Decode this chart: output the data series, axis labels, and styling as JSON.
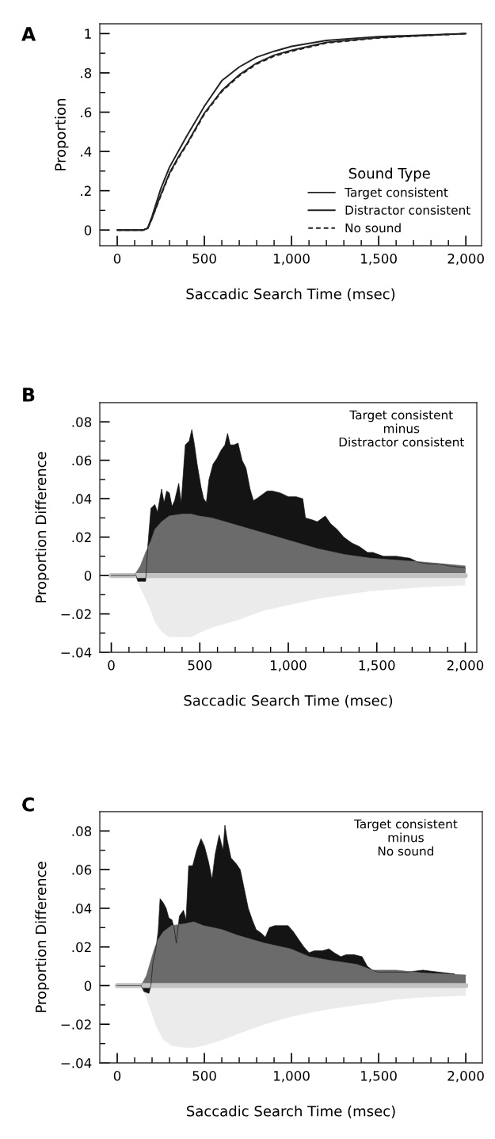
{
  "chart_data": [
    {
      "type": "line",
      "title": "A",
      "xlabel": "Saccadic Search Time (msec)",
      "ylabel": "Proportion",
      "legend_title": "Sound Type",
      "legend": "bottom right",
      "x": [
        0,
        150,
        175,
        200,
        250,
        300,
        350,
        400,
        500,
        600,
        700,
        800,
        900,
        1000,
        1200,
        1500,
        2000
      ],
      "series": [
        {
          "name": "Target consistent",
          "color": "#222222",
          "line_style": "solid",
          "values": [
            0,
            0,
            0.01,
            0.07,
            0.21,
            0.32,
            0.4,
            0.48,
            0.63,
            0.76,
            0.83,
            0.88,
            0.91,
            0.935,
            0.965,
            0.985,
            1
          ]
        },
        {
          "name": "Distractor consistent",
          "color": "#222222",
          "line_style": "solid",
          "values": [
            0,
            0,
            0.008,
            0.06,
            0.18,
            0.29,
            0.37,
            0.44,
            0.595,
            0.71,
            0.79,
            0.85,
            0.89,
            0.915,
            0.955,
            0.98,
            1
          ]
        },
        {
          "name": "No sound",
          "color": "#222222",
          "line_style": "dashed",
          "values": [
            0,
            0,
            0.008,
            0.06,
            0.175,
            0.285,
            0.365,
            0.435,
            0.59,
            0.705,
            0.785,
            0.845,
            0.885,
            0.91,
            0.952,
            0.978,
            1
          ]
        }
      ],
      "xlim": [
        -100,
        2090
      ],
      "ylim": [
        -0.08,
        1.05
      ],
      "xticks": [
        0,
        {
          "value": 100,
          "label": null
        },
        {
          "value": 200,
          "label": null
        },
        {
          "value": 300,
          "label": null
        },
        {
          "value": 400,
          "label": null
        },
        500,
        {
          "value": 600,
          "label": null
        },
        {
          "value": 700,
          "label": null
        },
        {
          "value": 800,
          "label": null
        },
        {
          "value": 900,
          "label": null
        },
        {
          "value": 1000,
          "label": "1,000"
        },
        {
          "value": 1100,
          "label": null
        },
        {
          "value": 1200,
          "label": null
        },
        {
          "value": 1300,
          "label": null
        },
        {
          "value": 1400,
          "label": null
        },
        {
          "value": 1500,
          "label": "1,500"
        },
        {
          "value": 1600,
          "label": null
        },
        {
          "value": 1700,
          "label": null
        },
        {
          "value": 1800,
          "label": null
        },
        {
          "value": 1900,
          "label": null
        },
        {
          "value": 2000,
          "label": "2,000"
        }
      ],
      "yticks": [
        0,
        {
          "value": 0.1,
          "label": null
        },
        {
          "value": 0.2,
          "label": ".2"
        },
        {
          "value": 0.3,
          "label": null
        },
        {
          "value": 0.4,
          "label": ".4"
        },
        {
          "value": 0.5,
          "label": null
        },
        {
          "value": 0.6,
          "label": ".6"
        },
        {
          "value": 0.7,
          "label": null
        },
        {
          "value": 0.8,
          "label": ".8"
        },
        {
          "value": 0.9,
          "label": null
        },
        1
      ]
    },
    {
      "type": "area",
      "title": "B",
      "xlabel": "Saccadic Search Time (msec)",
      "ylabel": "Proportion Difference",
      "annotations": [
        "Target consistent\nminus\nDistractor consistent"
      ],
      "series": [
        {
          "type": "area",
          "color": "#eaebea",
          "x": [
            0,
            130,
            164,
            194,
            224,
            246,
            284,
            328,
            403,
            448,
            493,
            567,
            642,
            716,
            866,
            1015,
            1164,
            1313,
            1463,
            1612,
            1761,
            2000
          ],
          "values": [
            0,
            0,
            -0.006,
            -0.012,
            -0.018,
            -0.024,
            -0.029,
            -0.032,
            -0.032,
            -0.032,
            -0.03,
            -0.027,
            -0.025,
            -0.023,
            -0.018,
            -0.015,
            -0.012,
            -0.01,
            -0.008,
            -0.007,
            -0.006,
            -0.005
          ]
        },
        {
          "type": "area",
          "color": "#141414",
          "x": [
            0,
            140,
            150,
            175,
            194,
            206,
            224,
            246,
            261,
            284,
            298,
            313,
            328,
            343,
            358,
            381,
            395,
            418,
            440,
            455,
            470,
            485,
            507,
            522,
            537,
            552,
            575,
            597,
            619,
            642,
            657,
            672,
            694,
            716,
            739,
            761,
            784,
            803,
            821,
            851,
            881,
            910,
            955,
            1000,
            1045,
            1082,
            1097,
            1134,
            1164,
            1209,
            1239,
            1276,
            1313,
            1358,
            1403,
            1448,
            1478,
            1537,
            1612,
            1687,
            1731,
            1791,
            1851,
            1910,
            2000
          ],
          "values": [
            0,
            0,
            -0.003,
            -0.003,
            -0.003,
            0.015,
            0.035,
            0.037,
            0.033,
            0.045,
            0.038,
            0.044,
            0.043,
            0.036,
            0.039,
            0.048,
            0.038,
            0.068,
            0.07,
            0.076,
            0.068,
            0.058,
            0.046,
            0.04,
            0.038,
            0.05,
            0.058,
            0.061,
            0.065,
            0.068,
            0.074,
            0.068,
            0.068,
            0.069,
            0.06,
            0.056,
            0.045,
            0.039,
            0.04,
            0.042,
            0.044,
            0.044,
            0.043,
            0.041,
            0.041,
            0.04,
            0.03,
            0.029,
            0.028,
            0.031,
            0.027,
            0.024,
            0.02,
            0.017,
            0.015,
            0.012,
            0.012,
            0.01,
            0.01,
            0.009,
            0.007,
            0.006,
            0.006,
            0.005,
            0.004
          ]
        },
        {
          "type": "area",
          "color": "#6b6b6b",
          "x": [
            0,
            130,
            164,
            194,
            224,
            246,
            284,
            328,
            403,
            448,
            493,
            567,
            642,
            716,
            866,
            1015,
            1164,
            1313,
            1463,
            1612,
            1761,
            2000
          ],
          "values": [
            0,
            0,
            0.005,
            0.012,
            0.018,
            0.024,
            0.028,
            0.031,
            0.032,
            0.032,
            0.031,
            0.03,
            0.028,
            0.026,
            0.022,
            0.018,
            0.014,
            0.011,
            0.009,
            0.008,
            0.007,
            0.005
          ]
        },
        {
          "type": "line",
          "color": "#c2c2c2",
          "x": [
            0,
            2000
          ],
          "values": [
            0,
            0
          ]
        }
      ],
      "xlim": [
        -65,
        2065
      ],
      "ylim": [
        -0.04,
        0.09
      ],
      "xticks": [
        0,
        {
          "value": 100,
          "label": null
        },
        {
          "value": 200,
          "label": null
        },
        {
          "value": 300,
          "label": null
        },
        {
          "value": 400,
          "label": null
        },
        500,
        {
          "value": 600,
          "label": null
        },
        {
          "value": 700,
          "label": null
        },
        {
          "value": 800,
          "label": null
        },
        {
          "value": 900,
          "label": null
        },
        {
          "value": 1000,
          "label": "1,000"
        },
        {
          "value": 1100,
          "label": null
        },
        {
          "value": 1200,
          "label": null
        },
        {
          "value": 1300,
          "label": null
        },
        {
          "value": 1400,
          "label": null
        },
        {
          "value": 1500,
          "label": "1,500"
        },
        {
          "value": 1600,
          "label": null
        },
        {
          "value": 1700,
          "label": null
        },
        {
          "value": 1800,
          "label": null
        },
        {
          "value": 1900,
          "label": null
        },
        {
          "value": 2000,
          "label": "2,000"
        }
      ],
      "yticks": [
        {
          "value": -0.04,
          "label": "−.04"
        },
        {
          "value": -0.03,
          "label": null
        },
        {
          "value": -0.02,
          "label": "−.02"
        },
        {
          "value": -0.01,
          "label": null
        },
        0,
        {
          "value": 0.01,
          "label": null
        },
        {
          "value": 0.02,
          "label": ".02"
        },
        {
          "value": 0.03,
          "label": null
        },
        {
          "value": 0.04,
          "label": ".04"
        },
        {
          "value": 0.05,
          "label": null
        },
        {
          "value": 0.06,
          "label": ".06"
        },
        {
          "value": 0.07,
          "label": null
        },
        {
          "value": 0.08,
          "label": ".08"
        }
      ]
    },
    {
      "type": "area",
      "title": "C",
      "xlabel": "Saccadic Search Time (msec)",
      "ylabel": "Proportion Difference",
      "annotations": [
        "Target consistent\nminus\nNo sound"
      ],
      "series": [
        {
          "type": "area",
          "color": "#eaebea",
          "x": [
            0,
            137,
            167,
            190,
            213,
            235,
            266,
            311,
            387,
            440,
            494,
            600,
            691,
            843,
            995,
            1101,
            1222,
            1374,
            1465,
            1602,
            1754,
            2000
          ],
          "values": [
            0,
            0,
            -0.006,
            -0.012,
            -0.018,
            -0.023,
            -0.028,
            -0.031,
            -0.032,
            -0.032,
            -0.031,
            -0.028,
            -0.025,
            -0.02,
            -0.016,
            -0.014,
            -0.012,
            -0.01,
            -0.009,
            -0.007,
            -0.006,
            -0.005
          ]
        },
        {
          "type": "area",
          "color": "#141414",
          "x": [
            0,
            137,
            152,
            182,
            193,
            205,
            220,
            235,
            246,
            263,
            281,
            296,
            314,
            326,
            339,
            357,
            380,
            395,
            410,
            433,
            456,
            481,
            501,
            524,
            544,
            562,
            585,
            607,
            618,
            630,
            653,
            683,
            706,
            729,
            752,
            775,
            797,
            828,
            850,
            873,
            904,
            934,
            980,
            1010,
            1040,
            1071,
            1101,
            1131,
            1177,
            1215,
            1245,
            1283,
            1314,
            1359,
            1405,
            1435,
            1465,
            1496,
            1572,
            1663,
            1754,
            1845,
            1936
          ],
          "values": [
            0,
            0,
            -0.003,
            -0.004,
            0.0,
            0.012,
            0.018,
            0.028,
            0.045,
            0.043,
            0.04,
            0.035,
            0.034,
            0.03,
            0.022,
            0.036,
            0.039,
            0.034,
            0.062,
            0.062,
            0.07,
            0.076,
            0.072,
            0.064,
            0.055,
            0.068,
            0.078,
            0.07,
            0.083,
            0.076,
            0.066,
            0.063,
            0.06,
            0.05,
            0.04,
            0.034,
            0.029,
            0.027,
            0.025,
            0.03,
            0.031,
            0.031,
            0.031,
            0.028,
            0.024,
            0.02,
            0.017,
            0.018,
            0.018,
            0.019,
            0.017,
            0.015,
            0.016,
            0.016,
            0.015,
            0.01,
            0.008,
            0.007,
            0.007,
            0.007,
            0.008,
            0.007,
            0.006
          ]
        },
        {
          "type": "area",
          "color": "#6b6b6b",
          "x": [
            0,
            137,
            167,
            190,
            213,
            235,
            266,
            311,
            387,
            440,
            494,
            600,
            691,
            843,
            995,
            1101,
            1222,
            1374,
            1465,
            1602,
            1754,
            2000
          ],
          "values": [
            0,
            0,
            0.005,
            0.012,
            0.019,
            0.024,
            0.028,
            0.031,
            0.032,
            0.033,
            0.031,
            0.029,
            0.026,
            0.022,
            0.019,
            0.015,
            0.013,
            0.011,
            0.008,
            0.008,
            0.0065,
            0.0055
          ]
        },
        {
          "type": "line",
          "color": "#c2c2c2",
          "x": [
            0,
            2000
          ],
          "values": [
            0,
            0
          ]
        }
      ],
      "xlim": [
        -100,
        2095
      ],
      "ylim": [
        -0.04,
        0.09
      ],
      "xticks": [
        0,
        {
          "value": 100,
          "label": null
        },
        {
          "value": 200,
          "label": null
        },
        {
          "value": 300,
          "label": null
        },
        {
          "value": 400,
          "label": null
        },
        500,
        {
          "value": 600,
          "label": null
        },
        {
          "value": 700,
          "label": null
        },
        {
          "value": 800,
          "label": null
        },
        {
          "value": 900,
          "label": null
        },
        {
          "value": 1000,
          "label": "1,000"
        },
        {
          "value": 1100,
          "label": null
        },
        {
          "value": 1200,
          "label": null
        },
        {
          "value": 1300,
          "label": null
        },
        {
          "value": 1400,
          "label": null
        },
        {
          "value": 1500,
          "label": "1,500"
        },
        {
          "value": 1600,
          "label": null
        },
        {
          "value": 1700,
          "label": null
        },
        {
          "value": 1800,
          "label": null
        },
        {
          "value": 1900,
          "label": null
        },
        {
          "value": 2000,
          "label": "2,000"
        }
      ],
      "yticks": [
        {
          "value": -0.04,
          "label": "−.04"
        },
        {
          "value": -0.03,
          "label": null
        },
        {
          "value": -0.02,
          "label": "−.02"
        },
        {
          "value": -0.01,
          "label": null
        },
        0,
        {
          "value": 0.01,
          "label": null
        },
        {
          "value": 0.02,
          "label": ".02"
        },
        {
          "value": 0.03,
          "label": null
        },
        {
          "value": 0.04,
          "label": ".04"
        },
        {
          "value": 0.05,
          "label": null
        },
        {
          "value": 0.06,
          "label": ".06"
        },
        {
          "value": 0.07,
          "label": null
        },
        {
          "value": 0.08,
          "label": ".08"
        }
      ]
    }
  ]
}
